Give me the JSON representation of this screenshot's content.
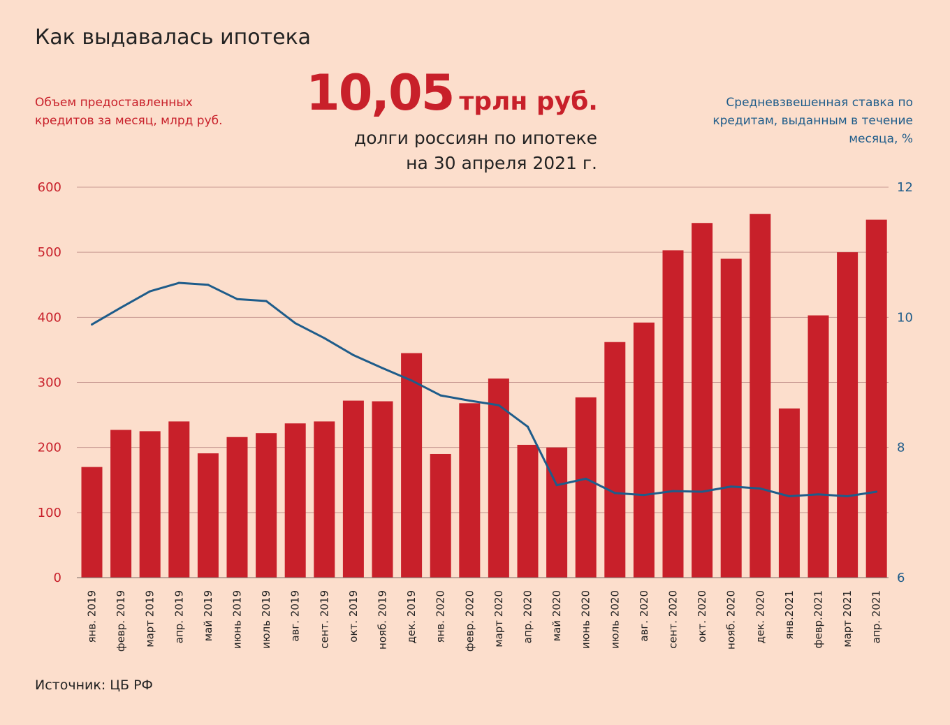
{
  "title": "Как выдавалась ипотека",
  "headline": {
    "value": "10,05",
    "unit": "трлн руб.",
    "caption_line1": "долги россиян по ипотеке",
    "caption_line2": "на 30 апреля 2021 г."
  },
  "left_axis_label": "Объем предоставленных кредитов за месяц, млрд руб.",
  "right_axis_label": "Средневзвешенная ставка по кредитам, выданным в течение месяца, %",
  "source": "Источник: ЦБ РФ",
  "colors": {
    "bar": "#c8202a",
    "line": "#1e5c8a",
    "background": "#fcdecc",
    "grid": "#c89a92"
  },
  "chart_data": {
    "type": "bar",
    "categories": [
      "янв. 2019",
      "февр. 2019",
      "март 2019",
      "апр. 2019",
      "май 2019",
      "июнь 2019",
      "июль 2019",
      "авг. 2019",
      "сент. 2019",
      "окт. 2019",
      "нояб. 2019",
      "дек. 2019",
      "янв. 2020",
      "февр. 2020",
      "март 2020",
      "апр. 2020",
      "май 2020",
      "июнь 2020",
      "июль 2020",
      "авг. 2020",
      "сент. 2020",
      "окт. 2020",
      "нояб. 2020",
      "дек. 2020",
      "янв.2021",
      "февр.2021",
      "март 2021",
      "апр. 2021"
    ],
    "series": [
      {
        "name": "Объем предоставленных кредитов за месяц, млрд руб.",
        "type": "bar",
        "axis": "left",
        "values": [
          170,
          227,
          225,
          240,
          191,
          216,
          222,
          237,
          240,
          272,
          271,
          345,
          190,
          268,
          306,
          204,
          200,
          277,
          362,
          392,
          503,
          545,
          490,
          559,
          260,
          403,
          500,
          550
        ]
      },
      {
        "name": "Средневзвешенная ставка по кредитам, выданным в течение месяца, %",
        "type": "line",
        "axis": "right",
        "values": [
          9.89,
          10.15,
          10.4,
          10.53,
          10.5,
          10.28,
          10.25,
          9.91,
          9.68,
          9.42,
          9.22,
          9.03,
          8.8,
          8.72,
          8.65,
          8.32,
          7.42,
          7.52,
          7.3,
          7.27,
          7.33,
          7.32,
          7.4,
          7.37,
          7.25,
          7.28,
          7.25,
          7.32
        ]
      }
    ],
    "y_left": {
      "range": [
        0,
        600
      ],
      "ticks": [
        "0",
        "100",
        "200",
        "300",
        "400",
        "500",
        "600"
      ]
    },
    "y_right": {
      "range": [
        6,
        12
      ],
      "ticks": [
        "6",
        "8",
        "10",
        "12"
      ]
    },
    "grid": true
  }
}
